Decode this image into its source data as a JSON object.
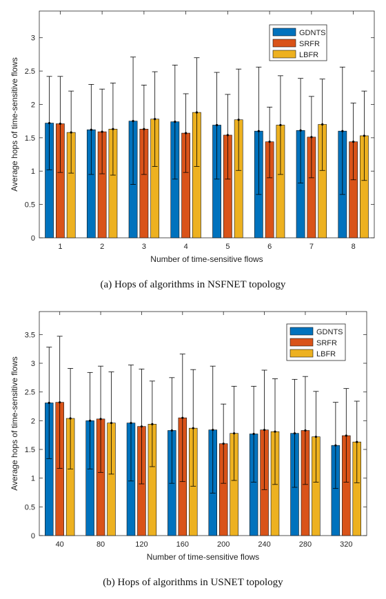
{
  "colors": {
    "GDNTS": "#0072BD",
    "SRFR": "#D95319",
    "LBFR": "#EDB120",
    "axis": "#262626"
  },
  "chart_data": [
    {
      "type": "bar",
      "caption": "(a) Hops of algorithms in NSFNET topology",
      "xlabel": "Number of time-sensitive flows",
      "ylabel": "Average hops of time-sensitive flows",
      "categories": [
        "1",
        "2",
        "3",
        "4",
        "5",
        "6",
        "7",
        "8"
      ],
      "ylim": [
        0,
        3.4
      ],
      "yticks": [
        0,
        0.5,
        1,
        1.5,
        2,
        2.5,
        3
      ],
      "ytick_labels": [
        "0",
        "0.5",
        "1",
        "1.5",
        "2",
        "2.5",
        "3"
      ],
      "legend_position": "top-right",
      "series": [
        {
          "name": "GDNTS",
          "values": [
            1.72,
            1.62,
            1.75,
            1.74,
            1.69,
            1.6,
            1.61,
            1.6
          ],
          "err_low": [
            1.02,
            0.95,
            0.8,
            0.88,
            0.88,
            0.65,
            0.82,
            0.65
          ],
          "err_high": [
            2.42,
            2.3,
            2.71,
            2.59,
            2.48,
            2.56,
            2.39,
            2.56
          ]
        },
        {
          "name": "SRFR",
          "values": [
            1.71,
            1.59,
            1.63,
            1.57,
            1.54,
            1.44,
            1.51,
            1.44
          ],
          "err_low": [
            0.98,
            0.96,
            0.95,
            0.98,
            0.88,
            0.9,
            0.9,
            0.87
          ],
          "err_high": [
            2.42,
            2.23,
            2.29,
            2.16,
            2.15,
            1.96,
            2.12,
            2.02
          ]
        },
        {
          "name": "LBFR",
          "values": [
            1.58,
            1.63,
            1.78,
            1.88,
            1.77,
            1.69,
            1.7,
            1.53
          ],
          "err_low": [
            0.97,
            0.94,
            1.07,
            1.07,
            1.01,
            0.95,
            1.01,
            0.86
          ],
          "err_high": [
            2.2,
            2.32,
            2.49,
            2.7,
            2.53,
            2.43,
            2.38,
            2.2
          ]
        }
      ]
    },
    {
      "type": "bar",
      "caption": "(b) Hops of algorithms in USNET topology",
      "xlabel": "Number of time-sensitive flows",
      "ylabel": "Average hops of time-sensitive flows",
      "categories": [
        "40",
        "80",
        "120",
        "160",
        "200",
        "240",
        "280",
        "320"
      ],
      "ylim": [
        0,
        3.9
      ],
      "yticks": [
        0,
        0.5,
        1,
        1.5,
        2,
        2.5,
        3,
        3.5
      ],
      "ytick_labels": [
        "0",
        "0.5",
        "1",
        "1.5",
        "2",
        "2.5",
        "3",
        "3.5"
      ],
      "legend_position": "top-right",
      "series": [
        {
          "name": "GDNTS",
          "values": [
            2.31,
            2.0,
            1.96,
            1.83,
            1.84,
            1.77,
            1.78,
            1.57
          ],
          "err_low": [
            1.34,
            1.16,
            0.95,
            0.91,
            0.74,
            0.93,
            0.84,
            0.82
          ],
          "err_high": [
            3.28,
            2.84,
            2.97,
            2.75,
            2.95,
            2.6,
            2.72,
            2.32
          ]
        },
        {
          "name": "SRFR",
          "values": [
            2.32,
            2.03,
            1.9,
            2.05,
            1.6,
            1.84,
            1.83,
            1.74
          ],
          "err_low": [
            1.17,
            1.1,
            0.9,
            0.94,
            0.91,
            0.8,
            0.89,
            0.93
          ],
          "err_high": [
            3.47,
            2.95,
            2.9,
            3.16,
            2.29,
            2.88,
            2.77,
            2.56
          ]
        },
        {
          "name": "LBFR",
          "values": [
            2.04,
            1.96,
            1.94,
            1.87,
            1.78,
            1.81,
            1.72,
            1.63
          ],
          "err_low": [
            1.16,
            1.07,
            1.2,
            0.86,
            0.96,
            0.89,
            0.93,
            0.92
          ],
          "err_high": [
            2.91,
            2.85,
            2.69,
            2.89,
            2.6,
            2.73,
            2.51,
            2.34
          ]
        }
      ]
    }
  ]
}
